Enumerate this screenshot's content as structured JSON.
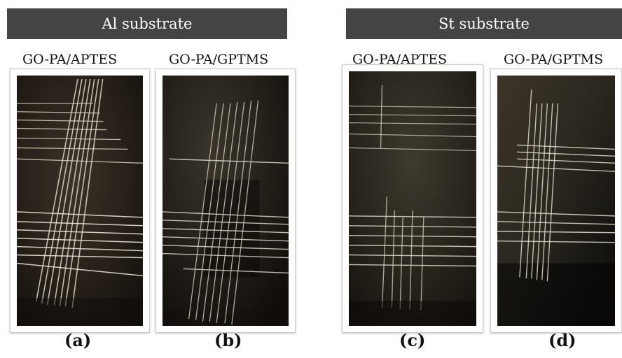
{
  "groups": [
    {
      "title": "Al substrate"
    },
    {
      "title": "St substrate"
    }
  ],
  "panels": [
    {
      "sample": "GO-PA/APTES",
      "caption": "(a)"
    },
    {
      "sample": "GO-PA/GPTMS",
      "caption": "(b)"
    },
    {
      "sample": "GO-PA/APTES",
      "caption": "(c)"
    },
    {
      "sample": "GO-PA/GPTMS",
      "caption": "(d)"
    }
  ]
}
